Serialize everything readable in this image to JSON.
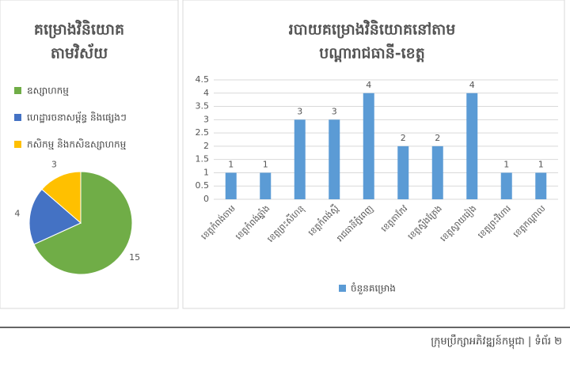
{
  "chart_data": [
    {
      "type": "pie",
      "title": [
        "គម្រោងវិនិយោគ",
        "តាមវិស័យ"
      ],
      "categories": [
        "ឧស្សាហកម្ម",
        "ហេដ្ឋារចនាសម្ព័ន្ធ និងផ្សេងៗ",
        "កសិកម្ម និងកសិឧស្សាហកម្ម"
      ],
      "values": [
        15,
        4,
        3
      ],
      "colors": [
        "#70ad47",
        "#4472c4",
        "#ffc000"
      ]
    },
    {
      "type": "bar",
      "title": [
        "របាយគម្រោងវិនិយោគនៅតាម",
        "បណ្តារាជធានី-ខេត្ត"
      ],
      "categories": [
        "ខេត្តកំពង់ចាម",
        "ខេត្តកំពង់ឆ្នាំង",
        "ខេត្តព្រះសីហនុ",
        "ខេត្តកំពង់ស្ពឺ",
        "រាជធានីភ្នំពេញ",
        "ខេត្តតាកែវ",
        "ខេត្តស្ទឹងត្រែង",
        "ខេត្តស្វាយរៀង",
        "ខេត្តព្រះវិហារ",
        "ខេត្តកណ្តាល"
      ],
      "series": [
        {
          "name": "ចំនួនគម្រោង",
          "color": "#5b9bd5",
          "values": [
            1,
            1,
            3,
            3,
            4,
            2,
            2,
            4,
            1,
            1
          ]
        }
      ],
      "ylim": [
        0,
        4.5
      ],
      "yticks": [
        0,
        0.5,
        1,
        1.5,
        2,
        2.5,
        3,
        3.5,
        4,
        4.5
      ],
      "grid": true
    }
  ],
  "footer": "ក្រុមប្រឹក្សាអភិវឌ្ឍន៍កម្ពុជា | ទំព័រ ២"
}
